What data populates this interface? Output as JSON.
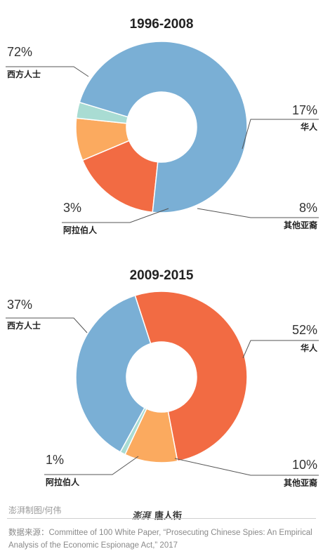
{
  "chart_data": [
    {
      "type": "pie",
      "title": "1996-2008",
      "slices": [
        {
          "label": "西方人士",
          "value": 72,
          "display": "72%",
          "color": "#7aafd5"
        },
        {
          "label": "华人",
          "value": 17,
          "display": "17%",
          "color": "#f26b43"
        },
        {
          "label": "其他亚裔",
          "value": 8,
          "display": "8%",
          "color": "#fbaa5f"
        },
        {
          "label": "阿拉伯人",
          "value": 3,
          "display": "3%",
          "color": "#a9dcd3"
        }
      ]
    },
    {
      "type": "pie",
      "title": "2009-2015",
      "slices": [
        {
          "label": "西方人士",
          "value": 37,
          "display": "37%",
          "color": "#7aafd5"
        },
        {
          "label": "华人",
          "value": 52,
          "display": "52%",
          "color": "#f26b43"
        },
        {
          "label": "其他亚裔",
          "value": 10,
          "display": "10%",
          "color": "#fbaa5f"
        },
        {
          "label": "阿拉伯人",
          "value": 1,
          "display": "1%",
          "color": "#a9dcd3"
        }
      ]
    }
  ],
  "footer": {
    "credit": "澎湃制图/何伟",
    "logo_mark": "澎湃",
    "logo_text": "唐人街",
    "source": "数据来源：Committee of 100 White Paper, “Prosecuting Chinese Spies: An Empirical Analysis of the Economic Espionage Act,” 2017"
  }
}
